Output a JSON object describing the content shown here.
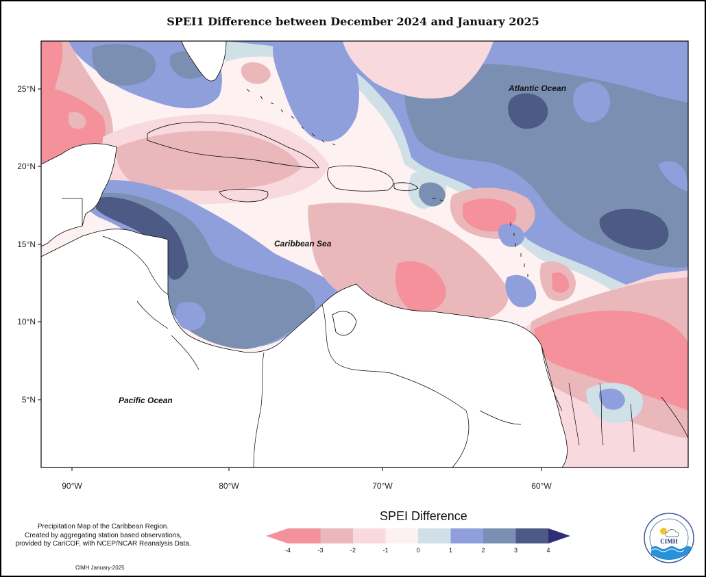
{
  "title": "SPEI1 Difference between December 2024 and January 2025",
  "map": {
    "ocean_labels": [
      "Atlantic Ocean",
      "Caribbean Sea",
      "Pacific Ocean"
    ],
    "lon_ticks": [
      "90°W",
      "80°W",
      "70°W",
      "60°W"
    ],
    "lat_ticks": [
      "25°N",
      "20°N",
      "15°N",
      "10°N",
      "5°N"
    ]
  },
  "legend": {
    "title": "SPEI Difference",
    "tick_labels": [
      "-4",
      "-3",
      "-2",
      "-1",
      "0",
      "1",
      "2",
      "3",
      "4"
    ],
    "colors": [
      "#f4919b",
      "#eab8bb",
      "#f8d9de",
      "#fdf1f1",
      "#cfe0e6",
      "#8f9fdc",
      "#7b8fb2",
      "#4e5a86",
      "#2e2d78"
    ]
  },
  "footnote": {
    "line1": "Precipitation Map of the Caribbean Region.",
    "line2": "Created by aggregating station based observations,",
    "line3": "provided by CariCOF, with NCEP/NCAR Reanalysis Data."
  },
  "credit": "CIMH January-2025",
  "logo": {
    "text": "CIMH",
    "ring_text": "Caribbean Institute for Meteorology and Hydrology"
  }
}
